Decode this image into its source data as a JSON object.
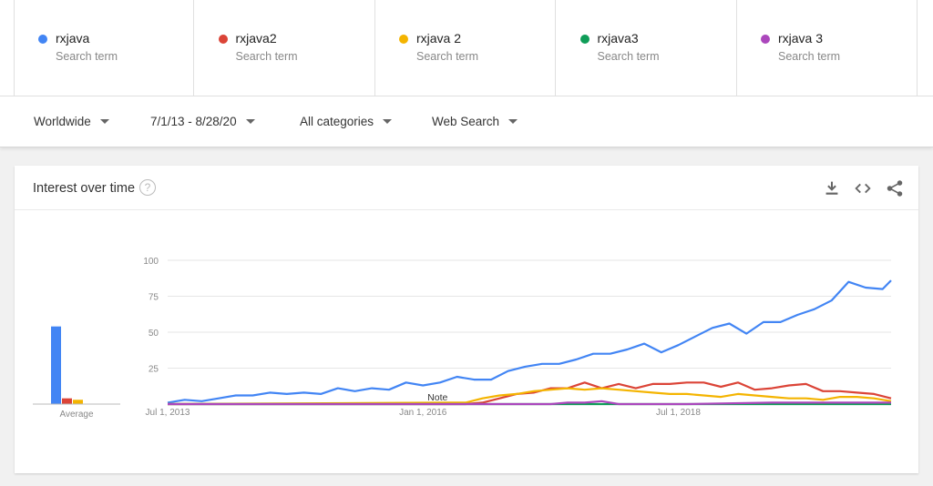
{
  "terms": [
    {
      "name": "rxjava",
      "sub": "Search term",
      "color": "#4285f4"
    },
    {
      "name": "rxjava2",
      "sub": "Search term",
      "color": "#db4437"
    },
    {
      "name": "rxjava 2",
      "sub": "Search term",
      "color": "#f4b400"
    },
    {
      "name": "rxjava3",
      "sub": "Search term",
      "color": "#0f9d58"
    },
    {
      "name": "rxjava 3",
      "sub": "Search term",
      "color": "#ab47bc"
    }
  ],
  "filters": {
    "region": "Worldwide",
    "date_range": "7/1/13 - 8/28/20",
    "category": "All categories",
    "search_type": "Web Search"
  },
  "card": {
    "title": "Interest over time",
    "help_icon": "help-circle-icon",
    "actions": [
      "download-icon",
      "embed-code-icon",
      "share-icon"
    ]
  },
  "chart_data": {
    "type": "line",
    "title": "Interest over time",
    "xlabel": "",
    "ylabel": "",
    "ylim": [
      0,
      100
    ],
    "yticks": [
      25,
      50,
      75,
      100
    ],
    "xlim": [
      "2013-07",
      "2020-08"
    ],
    "xticks": [
      {
        "label": "Jul 1, 2013",
        "value": "2013-07"
      },
      {
        "label": "Jan 1, 2016",
        "value": "2016-01"
      },
      {
        "label": "Jul 1, 2018",
        "value": "2018-07"
      }
    ],
    "annotation": {
      "label": "Note",
      "x": "2016-01"
    },
    "grid": true,
    "average_label": "Average",
    "averages": [
      54,
      4,
      3,
      0,
      0
    ],
    "series": [
      {
        "name": "rxjava",
        "color": "#4285f4",
        "points": [
          [
            "2013-07",
            1
          ],
          [
            "2013-09",
            3
          ],
          [
            "2013-11",
            2
          ],
          [
            "2014-01",
            4
          ],
          [
            "2014-03",
            6
          ],
          [
            "2014-05",
            6
          ],
          [
            "2014-07",
            8
          ],
          [
            "2014-09",
            7
          ],
          [
            "2014-11",
            8
          ],
          [
            "2015-01",
            7
          ],
          [
            "2015-03",
            11
          ],
          [
            "2015-05",
            9
          ],
          [
            "2015-07",
            11
          ],
          [
            "2015-09",
            10
          ],
          [
            "2015-11",
            15
          ],
          [
            "2016-01",
            13
          ],
          [
            "2016-03",
            15
          ],
          [
            "2016-05",
            19
          ],
          [
            "2016-07",
            17
          ],
          [
            "2016-09",
            17
          ],
          [
            "2016-11",
            23
          ],
          [
            "2017-01",
            26
          ],
          [
            "2017-03",
            28
          ],
          [
            "2017-05",
            28
          ],
          [
            "2017-07",
            31
          ],
          [
            "2017-09",
            35
          ],
          [
            "2017-11",
            35
          ],
          [
            "2018-01",
            38
          ],
          [
            "2018-03",
            42
          ],
          [
            "2018-05",
            36
          ],
          [
            "2018-07",
            41
          ],
          [
            "2018-09",
            47
          ],
          [
            "2018-11",
            53
          ],
          [
            "2019-01",
            56
          ],
          [
            "2019-03",
            49
          ],
          [
            "2019-05",
            57
          ],
          [
            "2019-07",
            57
          ],
          [
            "2019-09",
            62
          ],
          [
            "2019-11",
            66
          ],
          [
            "2020-01",
            72
          ],
          [
            "2020-03",
            85
          ],
          [
            "2020-05",
            81
          ],
          [
            "2020-07",
            80
          ],
          [
            "2020-08",
            86
          ]
        ]
      },
      {
        "name": "rxjava2",
        "color": "#db4437",
        "points": [
          [
            "2013-07",
            0
          ],
          [
            "2016-06",
            0
          ],
          [
            "2016-08",
            1
          ],
          [
            "2016-10",
            4
          ],
          [
            "2016-12",
            7
          ],
          [
            "2017-02",
            8
          ],
          [
            "2017-04",
            11
          ],
          [
            "2017-06",
            11
          ],
          [
            "2017-08",
            15
          ],
          [
            "2017-10",
            11
          ],
          [
            "2017-12",
            14
          ],
          [
            "2018-02",
            11
          ],
          [
            "2018-04",
            14
          ],
          [
            "2018-06",
            14
          ],
          [
            "2018-08",
            15
          ],
          [
            "2018-10",
            15
          ],
          [
            "2018-12",
            12
          ],
          [
            "2019-02",
            15
          ],
          [
            "2019-04",
            10
          ],
          [
            "2019-06",
            11
          ],
          [
            "2019-08",
            13
          ],
          [
            "2019-10",
            14
          ],
          [
            "2019-12",
            9
          ],
          [
            "2020-02",
            9
          ],
          [
            "2020-04",
            8
          ],
          [
            "2020-06",
            7
          ],
          [
            "2020-08",
            4
          ]
        ]
      },
      {
        "name": "rxjava 2",
        "color": "#f4b400",
        "points": [
          [
            "2013-07",
            0
          ],
          [
            "2016-04",
            1
          ],
          [
            "2016-06",
            1
          ],
          [
            "2016-08",
            4
          ],
          [
            "2016-10",
            6
          ],
          [
            "2016-12",
            7
          ],
          [
            "2017-02",
            9
          ],
          [
            "2017-04",
            10
          ],
          [
            "2017-06",
            11
          ],
          [
            "2017-08",
            10
          ],
          [
            "2017-10",
            11
          ],
          [
            "2017-12",
            10
          ],
          [
            "2018-02",
            9
          ],
          [
            "2018-04",
            8
          ],
          [
            "2018-06",
            7
          ],
          [
            "2018-08",
            7
          ],
          [
            "2018-10",
            6
          ],
          [
            "2018-12",
            5
          ],
          [
            "2019-02",
            7
          ],
          [
            "2019-04",
            6
          ],
          [
            "2019-06",
            5
          ],
          [
            "2019-08",
            4
          ],
          [
            "2019-10",
            4
          ],
          [
            "2019-12",
            3
          ],
          [
            "2020-02",
            5
          ],
          [
            "2020-04",
            5
          ],
          [
            "2020-06",
            4
          ],
          [
            "2020-08",
            2
          ]
        ]
      },
      {
        "name": "rxjava3",
        "color": "#0f9d58",
        "points": [
          [
            "2013-07",
            0
          ],
          [
            "2020-08",
            0
          ]
        ]
      },
      {
        "name": "rxjava 3",
        "color": "#ab47bc",
        "points": [
          [
            "2013-07",
            0
          ],
          [
            "2017-04",
            0
          ],
          [
            "2017-06",
            1
          ],
          [
            "2017-08",
            1
          ],
          [
            "2017-10",
            2
          ],
          [
            "2017-12",
            0
          ],
          [
            "2018-08",
            0
          ],
          [
            "2019-06",
            1
          ],
          [
            "2020-08",
            1
          ]
        ]
      }
    ]
  }
}
